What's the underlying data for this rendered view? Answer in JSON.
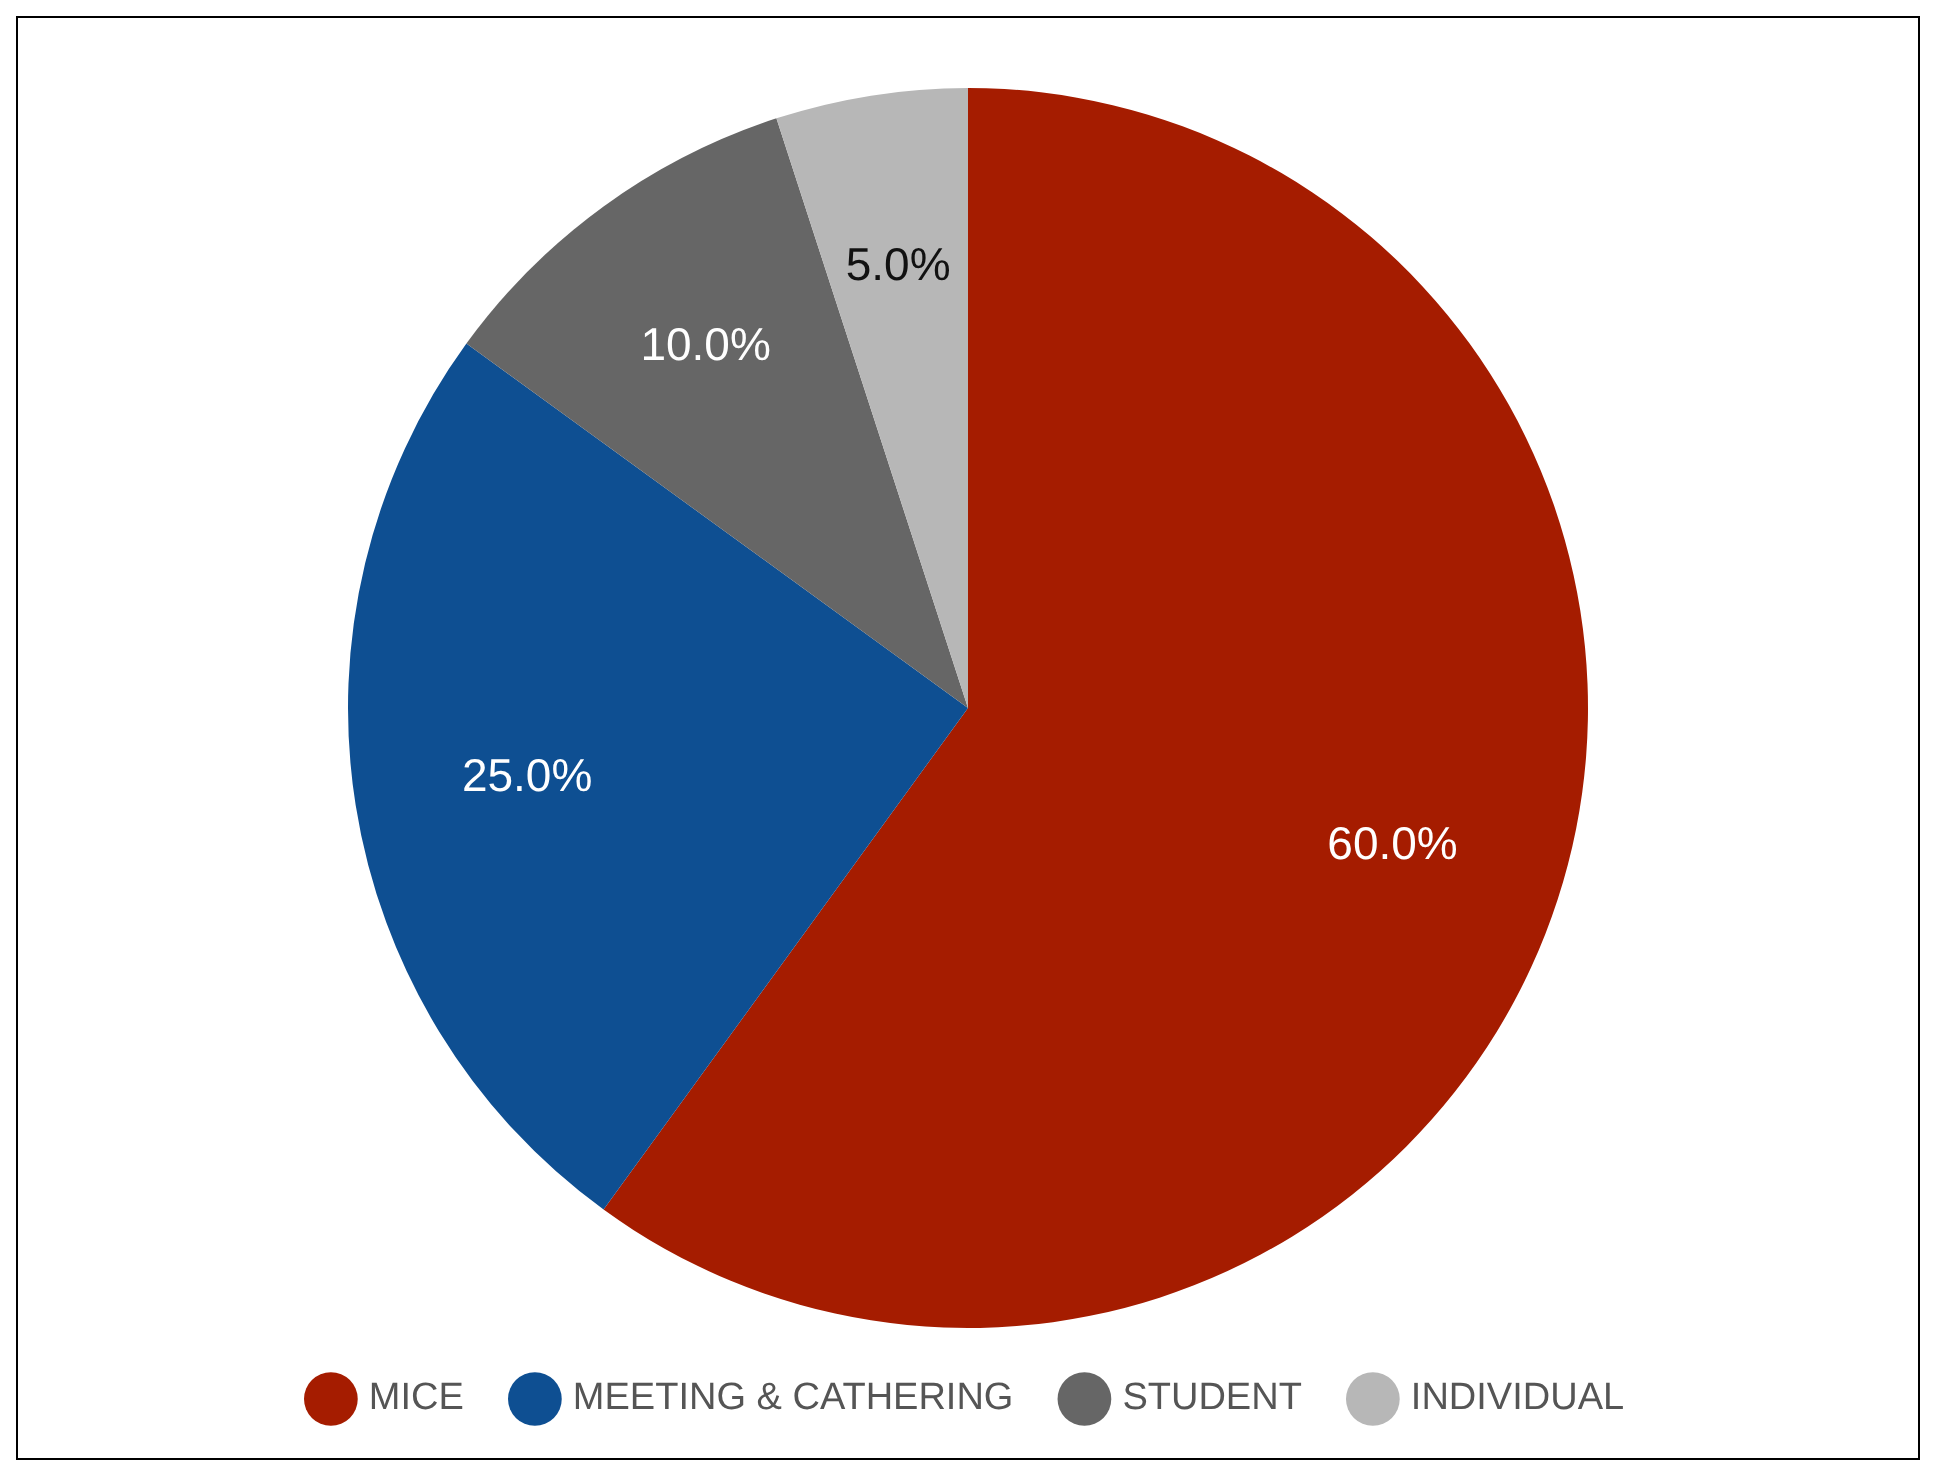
{
  "chart_data": {
    "type": "pie",
    "categories": [
      "MICE",
      "MEETING & CATHERING",
      "STUDENT",
      "INDIVIDUAL"
    ],
    "values": [
      60,
      25,
      10,
      5
    ],
    "colors": [
      "#a51c00",
      "#0e4f92",
      "#666666",
      "#b7b7b7"
    ],
    "value_labels": [
      "60.0%",
      "25.0%",
      "10.0%",
      "5.0%"
    ],
    "legend": "bottom"
  }
}
